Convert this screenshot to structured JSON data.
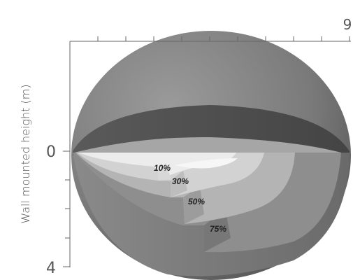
{
  "axis": {
    "x_max_label": "9",
    "y_zero_label": "0",
    "y_max_label": "4",
    "y_title": "Wall mounted height (m)"
  },
  "zones": [
    {
      "label": "10%"
    },
    {
      "label": "30%"
    },
    {
      "label": "50%"
    },
    {
      "label": "75%"
    }
  ],
  "colors": {
    "outer_shell": "#6b6b6b",
    "dark_band": "#555555",
    "zone_75": "#8e8e8e",
    "zone_50": "#b4b4b4",
    "zone_30": "#d2d2d2",
    "zone_10": "#ececec",
    "axis_line": "#666666",
    "text": "#555555"
  }
}
